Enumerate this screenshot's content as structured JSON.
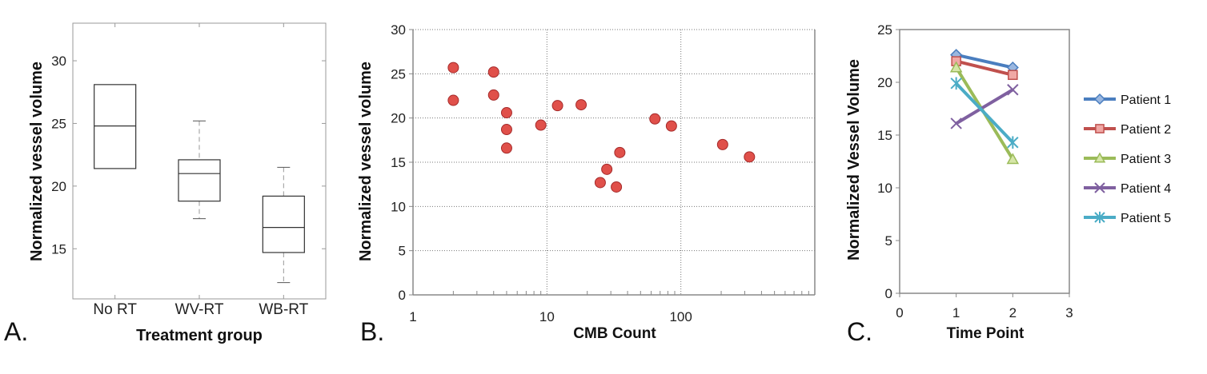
{
  "chart_data": [
    {
      "type": "box",
      "panel_label": "A.",
      "title": "",
      "xlabel": "Treatment group",
      "ylabel": "Normalized vessel volume",
      "ylim": [
        11,
        33
      ],
      "yticks": [
        15,
        20,
        25,
        30
      ],
      "categories": [
        "No RT",
        "WV-RT",
        "WB-RT"
      ],
      "boxes": [
        {
          "whisker_low": 21.4,
          "q1": 21.4,
          "median": 24.8,
          "q3": 28.1,
          "whisker_high": 28.1
        },
        {
          "whisker_low": 17.4,
          "q1": 18.8,
          "median": 21.0,
          "q3": 22.1,
          "whisker_high": 25.2
        },
        {
          "whisker_low": 12.3,
          "q1": 14.7,
          "median": 16.7,
          "q3": 19.2,
          "whisker_high": 21.5
        }
      ]
    },
    {
      "type": "scatter",
      "panel_label": "B.",
      "title": "",
      "xlabel": "CMB Count",
      "ylabel": "Normalized vessel volume",
      "xscale": "log",
      "xlim": [
        1,
        1000
      ],
      "xtick_labels": [
        "1",
        "10",
        "100"
      ],
      "ylim": [
        0,
        30
      ],
      "yticks": [
        0,
        5,
        10,
        15,
        20,
        25,
        30
      ],
      "grid": true,
      "marker_color": "#e0504a",
      "points": [
        {
          "x": 2,
          "y": 25.7
        },
        {
          "x": 2,
          "y": 22.0
        },
        {
          "x": 4,
          "y": 25.2
        },
        {
          "x": 4,
          "y": 22.6
        },
        {
          "x": 5,
          "y": 20.6
        },
        {
          "x": 5,
          "y": 18.7
        },
        {
          "x": 5,
          "y": 16.6
        },
        {
          "x": 9,
          "y": 19.2
        },
        {
          "x": 12,
          "y": 21.4
        },
        {
          "x": 18,
          "y": 21.5
        },
        {
          "x": 25,
          "y": 12.7
        },
        {
          "x": 28,
          "y": 14.2
        },
        {
          "x": 33,
          "y": 12.2
        },
        {
          "x": 35,
          "y": 16.1
        },
        {
          "x": 64,
          "y": 19.9
        },
        {
          "x": 85,
          "y": 19.1
        },
        {
          "x": 205,
          "y": 17.0
        },
        {
          "x": 325,
          "y": 15.6
        }
      ]
    },
    {
      "type": "line",
      "panel_label": "C.",
      "title": "",
      "xlabel": "Time Point",
      "ylabel": "Normalized Vessel Volume",
      "xlim": [
        0,
        3
      ],
      "xticks": [
        0,
        1,
        2,
        3
      ],
      "ylim": [
        0,
        25
      ],
      "yticks": [
        0,
        5,
        10,
        15,
        20,
        25
      ],
      "legend_position": "right",
      "x": [
        1,
        2
      ],
      "series": [
        {
          "name": "Patient 1",
          "values": [
            22.6,
            21.4
          ],
          "color": "#4a7ebf",
          "marker": "diamond"
        },
        {
          "name": "Patient 2",
          "values": [
            22.0,
            20.7
          ],
          "color": "#c0504d",
          "marker": "square"
        },
        {
          "name": "Patient 3",
          "values": [
            21.4,
            12.7
          ],
          "color": "#9bbb59",
          "marker": "triangle"
        },
        {
          "name": "Patient 4",
          "values": [
            16.1,
            19.3
          ],
          "color": "#7f60a0",
          "marker": "x"
        },
        {
          "name": "Patient 5",
          "values": [
            19.9,
            14.3
          ],
          "color": "#4bacc6",
          "marker": "star"
        }
      ]
    }
  ]
}
